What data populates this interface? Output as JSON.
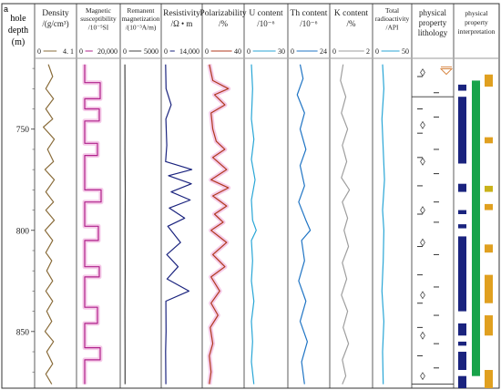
{
  "chart_data": {
    "type": "line",
    "panel_label": "a",
    "depth_header": {
      "line1": "hole",
      "line2": "depth",
      "line3": "(m)"
    },
    "depth_axis": {
      "range": [
        715,
        878
      ],
      "ticks": [
        750,
        800,
        850
      ],
      "tick_labels": [
        "750",
        "800",
        "850"
      ]
    },
    "tracks": [
      {
        "id": "density",
        "title": [
          "Density",
          "/(g/cm³)"
        ],
        "scale_min": "0",
        "scale_max": "4. 1",
        "range": [
          0,
          4.1
        ],
        "color": "#8a6d3b",
        "samples": [
          [
            718,
            1.2
          ],
          [
            724,
            1.7
          ],
          [
            730,
            0.9
          ],
          [
            735,
            1.8
          ],
          [
            740,
            0.9
          ],
          [
            745,
            1.7
          ],
          [
            749,
            0.6
          ],
          [
            755,
            1.9
          ],
          [
            760,
            1.1
          ],
          [
            766,
            1.8
          ],
          [
            770,
            0.8
          ],
          [
            775,
            1.9
          ],
          [
            781,
            0.9
          ],
          [
            786,
            1.8
          ],
          [
            790,
            0.9
          ],
          [
            795,
            1.9
          ],
          [
            800,
            0.8
          ],
          [
            805,
            1.7
          ],
          [
            811,
            0.9
          ],
          [
            815,
            1.6
          ],
          [
            820,
            1.0
          ],
          [
            825,
            1.7
          ],
          [
            830,
            0.9
          ],
          [
            835,
            1.7
          ],
          [
            840,
            1.0
          ],
          [
            845,
            1.6
          ],
          [
            850,
            0.8
          ],
          [
            855,
            1.8
          ],
          [
            860,
            1.0
          ],
          [
            866,
            1.7
          ],
          [
            871,
            0.9
          ],
          [
            876,
            1.6
          ]
        ]
      },
      {
        "id": "magnetic",
        "title": [
          "Magnetic",
          "susceptibility",
          "/10⁻⁵SI"
        ],
        "scale_min": "0",
        "scale_max": "20,000",
        "range": [
          0,
          20000
        ],
        "color": "#b0238c",
        "highlight": "#f2b8e0",
        "samples": [
          [
            718,
            2500
          ],
          [
            727,
            2500
          ],
          [
            727,
            11000
          ],
          [
            735,
            11000
          ],
          [
            735,
            2500
          ],
          [
            740,
            2500
          ],
          [
            740,
            10500
          ],
          [
            746,
            10500
          ],
          [
            746,
            2500
          ],
          [
            757,
            2500
          ],
          [
            757,
            9500
          ],
          [
            763,
            9500
          ],
          [
            763,
            2500
          ],
          [
            780,
            2500
          ],
          [
            780,
            11500
          ],
          [
            786,
            11500
          ],
          [
            786,
            2500
          ],
          [
            798,
            2500
          ],
          [
            798,
            10000
          ],
          [
            805,
            10000
          ],
          [
            805,
            2500
          ],
          [
            818,
            2500
          ],
          [
            818,
            10500
          ],
          [
            823,
            10500
          ],
          [
            823,
            2500
          ],
          [
            838,
            2500
          ],
          [
            838,
            9500
          ],
          [
            846,
            9500
          ],
          [
            846,
            2500
          ],
          [
            858,
            2500
          ],
          [
            858,
            11000
          ],
          [
            864,
            11000
          ],
          [
            864,
            2500
          ],
          [
            876,
            2500
          ]
        ]
      },
      {
        "id": "remanent",
        "title": [
          "Remanent",
          "magnetization",
          "/(10⁻³A/m)"
        ],
        "scale_min": "0",
        "scale_max": "5000",
        "range": [
          0,
          5000
        ],
        "color": "#444444",
        "samples": [
          [
            718,
            150
          ],
          [
            740,
            180
          ],
          [
            760,
            160
          ],
          [
            780,
            200
          ],
          [
            800,
            170
          ],
          [
            820,
            190
          ],
          [
            840,
            160
          ],
          [
            860,
            180
          ],
          [
            876,
            170
          ]
        ]
      },
      {
        "id": "resistivity",
        "title": [
          "Resistivity",
          "/Ω • m"
        ],
        "scale_min": "0",
        "scale_max": "14,000",
        "range": [
          0,
          14000
        ],
        "color": "#1a237e",
        "samples": [
          [
            718,
            300
          ],
          [
            730,
            500
          ],
          [
            738,
            2600
          ],
          [
            745,
            400
          ],
          [
            758,
            800
          ],
          [
            766,
            300
          ],
          [
            770,
            11200
          ],
          [
            773,
            1500
          ],
          [
            777,
            11000
          ],
          [
            781,
            2600
          ],
          [
            785,
            10500
          ],
          [
            789,
            1800
          ],
          [
            794,
            8200
          ],
          [
            798,
            1200
          ],
          [
            806,
            6500
          ],
          [
            812,
            800
          ],
          [
            818,
            5500
          ],
          [
            824,
            900
          ],
          [
            830,
            10000
          ],
          [
            835,
            400
          ],
          [
            850,
            500
          ],
          [
            860,
            300
          ],
          [
            876,
            400
          ]
        ]
      },
      {
        "id": "polarizability",
        "title": [
          "Polarizability",
          "/%"
        ],
        "scale_min": "0",
        "scale_max": "40",
        "range": [
          0,
          40
        ],
        "color": "#b03a1e",
        "highlight": "#f2b8e0",
        "samples": [
          [
            718,
            4
          ],
          [
            726,
            8
          ],
          [
            730,
            26
          ],
          [
            733,
            10
          ],
          [
            738,
            22
          ],
          [
            742,
            6
          ],
          [
            750,
            8
          ],
          [
            756,
            12
          ],
          [
            760,
            22
          ],
          [
            764,
            8
          ],
          [
            770,
            24
          ],
          [
            775,
            6
          ],
          [
            779,
            26
          ],
          [
            783,
            8
          ],
          [
            788,
            24
          ],
          [
            792,
            10
          ],
          [
            796,
            20
          ],
          [
            800,
            6
          ],
          [
            806,
            24
          ],
          [
            812,
            8
          ],
          [
            818,
            22
          ],
          [
            823,
            6
          ],
          [
            830,
            16
          ],
          [
            836,
            6
          ],
          [
            842,
            14
          ],
          [
            848,
            5
          ],
          [
            856,
            8
          ],
          [
            862,
            4
          ],
          [
            870,
            6
          ],
          [
            876,
            4
          ]
        ]
      },
      {
        "id": "uranium",
        "title": [
          "U content",
          "/10⁻⁶"
        ],
        "scale_min": "0",
        "scale_max": "30",
        "range": [
          0,
          30
        ],
        "color": "#29a6d6",
        "samples": [
          [
            718,
            3
          ],
          [
            730,
            4
          ],
          [
            745,
            3
          ],
          [
            755,
            5
          ],
          [
            765,
            3
          ],
          [
            775,
            6
          ],
          [
            785,
            3
          ],
          [
            795,
            4
          ],
          [
            800,
            7
          ],
          [
            805,
            3
          ],
          [
            815,
            4
          ],
          [
            825,
            3
          ],
          [
            835,
            5
          ],
          [
            845,
            3
          ],
          [
            855,
            4
          ],
          [
            865,
            3
          ],
          [
            876,
            5
          ]
        ]
      },
      {
        "id": "thorium",
        "title": [
          "Th content",
          "/10⁻⁶"
        ],
        "scale_min": "0",
        "scale_max": "24",
        "range": [
          0,
          24
        ],
        "color": "#1f74c4",
        "samples": [
          [
            718,
            6
          ],
          [
            725,
            8
          ],
          [
            733,
            4
          ],
          [
            742,
            9
          ],
          [
            750,
            6
          ],
          [
            760,
            10
          ],
          [
            768,
            6
          ],
          [
            778,
            9
          ],
          [
            786,
            5
          ],
          [
            795,
            10
          ],
          [
            800,
            13
          ],
          [
            805,
            7
          ],
          [
            815,
            9
          ],
          [
            825,
            5
          ],
          [
            835,
            10
          ],
          [
            845,
            6
          ],
          [
            855,
            11
          ],
          [
            865,
            7
          ],
          [
            876,
            9
          ]
        ]
      },
      {
        "id": "potassium",
        "title": [
          "K content",
          "/%"
        ],
        "scale_min": "0",
        "scale_max": "2",
        "range": [
          0,
          2
        ],
        "color": "#9e9e9e",
        "samples": [
          [
            718,
            0.55
          ],
          [
            726,
            0.4
          ],
          [
            734,
            0.7
          ],
          [
            742,
            0.45
          ],
          [
            750,
            0.8
          ],
          [
            758,
            0.5
          ],
          [
            766,
            0.75
          ],
          [
            774,
            0.45
          ],
          [
            780,
            0.9
          ],
          [
            786,
            0.5
          ],
          [
            794,
            0.8
          ],
          [
            800,
            0.6
          ],
          [
            808,
            0.85
          ],
          [
            816,
            0.5
          ],
          [
            824,
            0.75
          ],
          [
            832,
            0.45
          ],
          [
            840,
            0.8
          ],
          [
            848,
            0.55
          ],
          [
            856,
            0.85
          ],
          [
            864,
            0.5
          ],
          [
            872,
            0.7
          ],
          [
            876,
            0.5
          ]
        ]
      },
      {
        "id": "total_radioactivity",
        "title": [
          "Total",
          "radioactivity",
          "/API"
        ],
        "scale_min": "0",
        "scale_max": "50",
        "range": [
          0,
          50
        ],
        "color": "#29a6d6",
        "samples": [
          [
            718,
            10
          ],
          [
            730,
            12
          ],
          [
            745,
            9
          ],
          [
            760,
            11
          ],
          [
            775,
            13
          ],
          [
            790,
            10
          ],
          [
            800,
            12
          ],
          [
            815,
            11
          ],
          [
            830,
            9
          ],
          [
            845,
            12
          ],
          [
            860,
            10
          ],
          [
            876,
            11
          ]
        ]
      }
    ],
    "lithology": {
      "title": [
        "physical",
        "property",
        "lithology"
      ],
      "dash_depths": [
        724,
        732,
        740,
        744,
        752,
        760,
        764,
        772,
        778,
        786,
        792,
        796,
        808,
        812,
        822,
        828,
        836,
        842,
        848,
        856,
        862,
        868
      ],
      "diamond_depths": [
        722,
        748,
        766,
        790,
        806,
        832,
        852,
        872
      ],
      "divider_depths": [
        734,
        876
      ]
    },
    "interpretation": {
      "title": [
        "physical",
        "property",
        "interpretation"
      ],
      "green": [
        [
          726,
          872
        ]
      ],
      "blue": [
        [
          728,
          731
        ],
        [
          734,
          767
        ],
        [
          777,
          781
        ],
        [
          790,
          792
        ],
        [
          797,
          799
        ],
        [
          803,
          840
        ],
        [
          846,
          852
        ],
        [
          855,
          857
        ],
        [
          860,
          869
        ],
        [
          872,
          878
        ]
      ],
      "orange": [
        [
          723,
          729
        ],
        [
          754,
          757
        ],
        [
          787,
          790
        ],
        [
          807,
          811
        ],
        [
          822,
          836
        ],
        [
          842,
          852
        ],
        [
          869,
          878
        ]
      ],
      "gold": [
        [
          778,
          781
        ]
      ]
    }
  }
}
